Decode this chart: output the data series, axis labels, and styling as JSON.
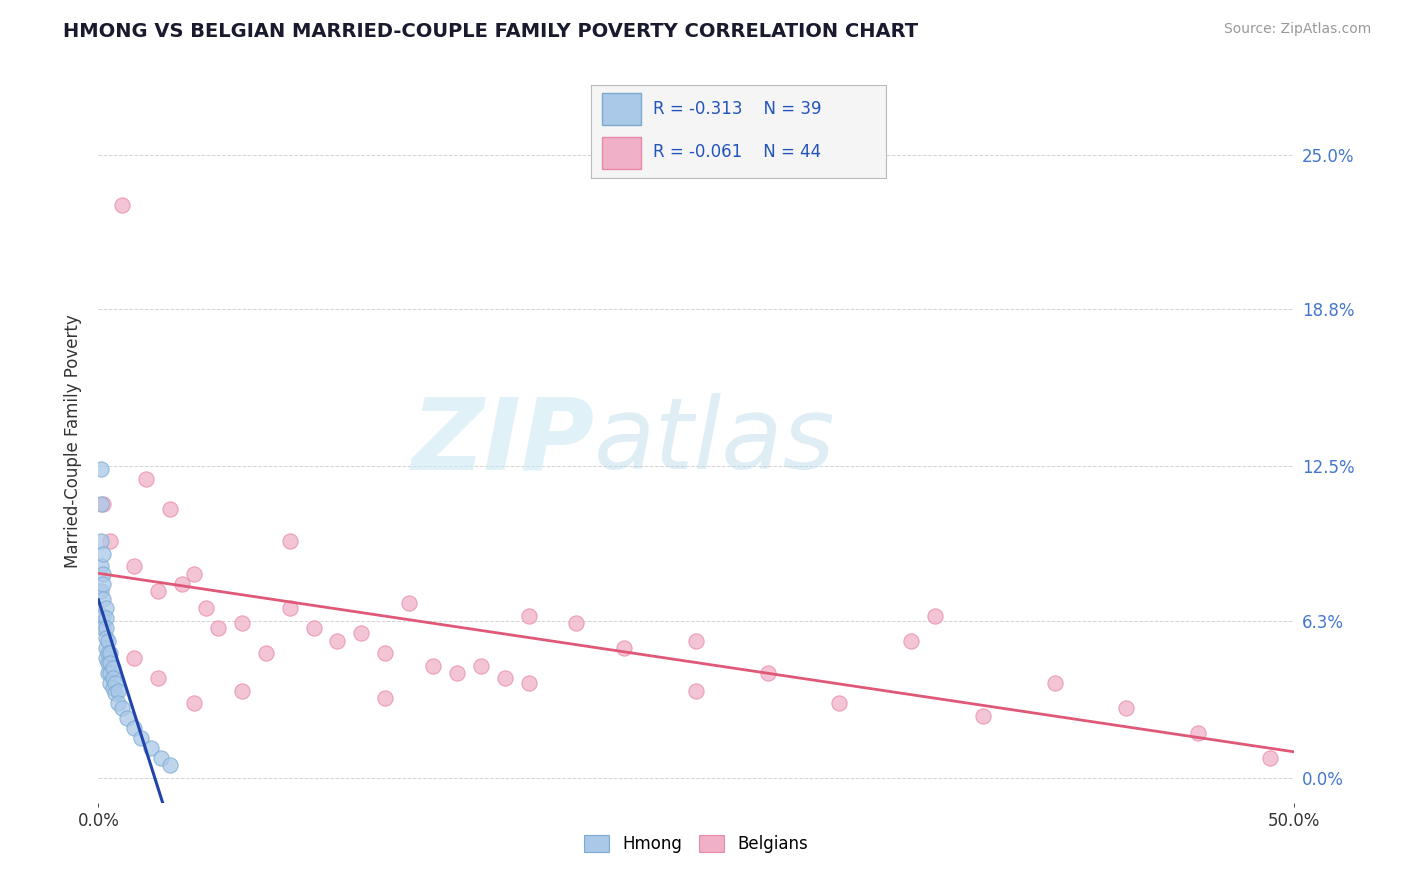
{
  "title": "HMONG VS BELGIAN MARRIED-COUPLE FAMILY POVERTY CORRELATION CHART",
  "source": "Source: ZipAtlas.com",
  "ylabel": "Married-Couple Family Poverty",
  "xlim": [
    0.0,
    0.5
  ],
  "ylim": [
    -0.01,
    0.28
  ],
  "ytick_labels": [
    "0.0%",
    "6.3%",
    "12.5%",
    "18.8%",
    "25.0%"
  ],
  "ytick_values": [
    0.0,
    0.063,
    0.125,
    0.188,
    0.25
  ],
  "xtick_labels": [
    "0.0%",
    "50.0%"
  ],
  "xtick_values": [
    0.0,
    0.5
  ],
  "background_color": "#ffffff",
  "plot_bg_color": "#ffffff",
  "grid_color": "#c8c8c8",
  "watermark_zip": "ZIP",
  "watermark_atlas": "atlas",
  "legend_hmong_r": "-0.313",
  "legend_hmong_n": "39",
  "legend_belgian_r": "-0.061",
  "legend_belgian_n": "44",
  "hmong_color": "#aac8e8",
  "hmong_edge_color": "#7aaad0",
  "belgian_color": "#f0b0c8",
  "belgian_edge_color": "#e888a8",
  "hmong_line_color": "#2244aa",
  "hmong_line_dash_color": "#8899cc",
  "belgian_line_color": "#e05878",
  "hmong_scatter_x": [
    0.001,
    0.001,
    0.001,
    0.001,
    0.002,
    0.002,
    0.002,
    0.002,
    0.002,
    0.003,
    0.003,
    0.003,
    0.003,
    0.003,
    0.003,
    0.004,
    0.004,
    0.004,
    0.004,
    0.005,
    0.005,
    0.005,
    0.005,
    0.006,
    0.006,
    0.006,
    0.007,
    0.007,
    0.008,
    0.008,
    0.01,
    0.012,
    0.015,
    0.018,
    0.022,
    0.026,
    0.03,
    0.001,
    0.002
  ],
  "hmong_scatter_y": [
    0.124,
    0.095,
    0.085,
    0.075,
    0.082,
    0.078,
    0.072,
    0.065,
    0.06,
    0.068,
    0.064,
    0.06,
    0.056,
    0.052,
    0.048,
    0.055,
    0.05,
    0.046,
    0.042,
    0.05,
    0.046,
    0.042,
    0.038,
    0.044,
    0.04,
    0.036,
    0.038,
    0.034,
    0.035,
    0.03,
    0.028,
    0.024,
    0.02,
    0.016,
    0.012,
    0.008,
    0.005,
    0.11,
    0.09
  ],
  "belgian_scatter_x": [
    0.002,
    0.005,
    0.01,
    0.015,
    0.02,
    0.025,
    0.03,
    0.035,
    0.04,
    0.045,
    0.05,
    0.06,
    0.07,
    0.08,
    0.09,
    0.1,
    0.11,
    0.12,
    0.13,
    0.14,
    0.15,
    0.16,
    0.17,
    0.18,
    0.2,
    0.22,
    0.25,
    0.28,
    0.31,
    0.34,
    0.37,
    0.4,
    0.43,
    0.46,
    0.49,
    0.35,
    0.25,
    0.18,
    0.08,
    0.04,
    0.025,
    0.015,
    0.06,
    0.12
  ],
  "belgian_scatter_y": [
    0.11,
    0.095,
    0.23,
    0.085,
    0.12,
    0.075,
    0.108,
    0.078,
    0.082,
    0.068,
    0.06,
    0.062,
    0.05,
    0.095,
    0.06,
    0.055,
    0.058,
    0.05,
    0.07,
    0.045,
    0.042,
    0.045,
    0.04,
    0.038,
    0.062,
    0.052,
    0.035,
    0.042,
    0.03,
    0.055,
    0.025,
    0.038,
    0.028,
    0.018,
    0.008,
    0.065,
    0.055,
    0.065,
    0.068,
    0.03,
    0.04,
    0.048,
    0.035,
    0.032
  ]
}
